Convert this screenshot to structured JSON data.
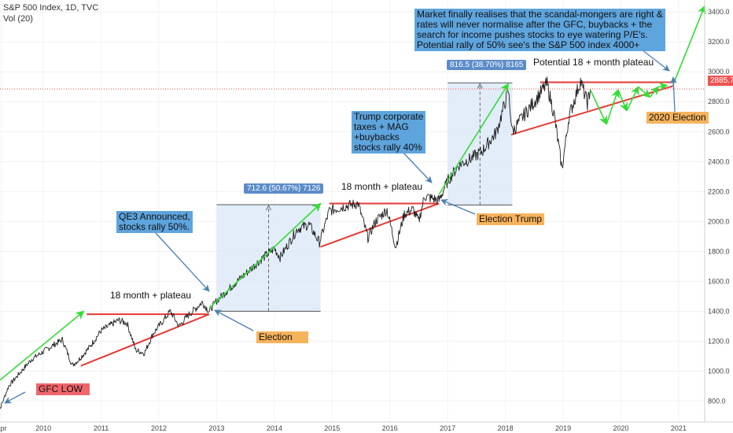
{
  "header": {
    "symbol_line": "S&P 500 Index, 1D, TVC",
    "volume_line": "Vol (20)"
  },
  "chart_data": {
    "type": "line",
    "title": "S&P 500 Index, 1D, TVC",
    "x_ticks": [
      "Apr",
      "2010",
      "2011",
      "2012",
      "2013",
      "2014",
      "2015",
      "2016",
      "2017",
      "2018",
      "2019",
      "2020",
      "2021"
    ],
    "y_ticks": [
      "800.0",
      "1000.0",
      "1200.0",
      "1400.0",
      "1600.0",
      "1800.0",
      "2000.0",
      "2200.0",
      "2400.0",
      "2600.0",
      "2800.0",
      "3000.0",
      "3200.0",
      "3400.0"
    ],
    "ylim": [
      660,
      3480
    ],
    "xlim": [
      2009.25,
      2021.45
    ],
    "current_price": "2885.7",
    "current_price_value": 2885.7,
    "price_series": [
      [
        2009.2,
        700
      ],
      [
        2009.4,
        900
      ],
      [
        2009.6,
        990
      ],
      [
        2009.8,
        1080
      ],
      [
        2010.0,
        1130
      ],
      [
        2010.2,
        1180
      ],
      [
        2010.33,
        1210
      ],
      [
        2010.5,
        1040
      ],
      [
        2010.6,
        1070
      ],
      [
        2010.8,
        1160
      ],
      [
        2011.0,
        1270
      ],
      [
        2011.3,
        1340
      ],
      [
        2011.45,
        1320
      ],
      [
        2011.6,
        1140
      ],
      [
        2011.75,
        1120
      ],
      [
        2011.9,
        1250
      ],
      [
        2012.2,
        1400
      ],
      [
        2012.35,
        1300
      ],
      [
        2012.5,
        1370
      ],
      [
        2012.75,
        1460
      ],
      [
        2012.87,
        1400
      ],
      [
        2013.0,
        1470
      ],
      [
        2013.3,
        1580
      ],
      [
        2013.5,
        1650
      ],
      [
        2013.75,
        1740
      ],
      [
        2014.0,
        1820
      ],
      [
        2014.1,
        1760
      ],
      [
        2014.4,
        1950
      ],
      [
        2014.6,
        1980
      ],
      [
        2014.78,
        1860
      ],
      [
        2014.95,
        2070
      ],
      [
        2015.2,
        2100
      ],
      [
        2015.45,
        2120
      ],
      [
        2015.62,
        1890
      ],
      [
        2015.75,
        2000
      ],
      [
        2015.95,
        2080
      ],
      [
        2016.1,
        1830
      ],
      [
        2016.25,
        2050
      ],
      [
        2016.4,
        2080
      ],
      [
        2016.5,
        2000
      ],
      [
        2016.6,
        2170
      ],
      [
        2016.85,
        2140
      ],
      [
        2017.0,
        2270
      ],
      [
        2017.2,
        2380
      ],
      [
        2017.4,
        2420
      ],
      [
        2017.6,
        2470
      ],
      [
        2017.85,
        2600
      ],
      [
        2018.05,
        2870
      ],
      [
        2018.12,
        2600
      ],
      [
        2018.3,
        2700
      ],
      [
        2018.5,
        2800
      ],
      [
        2018.72,
        2920
      ],
      [
        2018.85,
        2700
      ],
      [
        2018.98,
        2350
      ],
      [
        2019.1,
        2700
      ],
      [
        2019.3,
        2940
      ],
      [
        2019.42,
        2790
      ],
      [
        2019.47,
        2885
      ]
    ],
    "support_lines_red": [
      {
        "from": [
          2010.65,
          1035
        ],
        "to": [
          2012.87,
          1380
        ]
      },
      {
        "from": [
          2010.75,
          1380
        ],
        "to": [
          2012.87,
          1380
        ]
      },
      {
        "from": [
          2014.8,
          1830
        ],
        "to": [
          2016.85,
          2120
        ]
      },
      {
        "from": [
          2014.95,
          2120
        ],
        "to": [
          2016.85,
          2120
        ]
      },
      {
        "from": [
          2018.1,
          2580
        ],
        "to": [
          2020.9,
          2905
        ]
      },
      {
        "from": [
          2018.6,
          2930
        ],
        "to": [
          2020.9,
          2930
        ]
      }
    ],
    "trend_arrows_green": [
      {
        "from": [
          2009.25,
          940
        ],
        "to": [
          2010.7,
          1400
        ]
      },
      {
        "from": [
          2012.87,
          1420
        ],
        "to": [
          2014.8,
          2120
        ]
      },
      {
        "from": [
          2016.85,
          2180
        ],
        "to": [
          2018.05,
          2920
        ]
      },
      {
        "from": [
          2020.9,
          2910
        ],
        "to": [
          2021.45,
          3440
        ]
      }
    ],
    "projection_path_green": [
      [
        2019.47,
        2880
      ],
      [
        2019.75,
        2650
      ],
      [
        2019.95,
        2880
      ],
      [
        2020.1,
        2740
      ],
      [
        2020.3,
        2900
      ],
      [
        2020.5,
        2830
      ],
      [
        2020.65,
        2900
      ],
      [
        2020.8,
        2910
      ]
    ],
    "measured_moves": [
      {
        "label": "712.6 (50.67%) 7126",
        "x0": 2013.0,
        "x1": 2014.8,
        "y0": 1400,
        "y1": 2112
      },
      {
        "label": "816.5 (38.70%) 8165",
        "x0": 2017.0,
        "x1": 2018.12,
        "y0": 2110,
        "y1": 2926
      }
    ],
    "annotations": {
      "gfc_low": "GFC LOW",
      "plateau_1": "18 month + plateau",
      "qe3": "QE3 Announced,\nstocks rally 50%.",
      "election": "Election",
      "plateau_2": "18 month + plateau",
      "trump_taxes": "Trump corporate\ntaxes + MAG\n+buybacks\nstocks rally 40%",
      "election_trump": "Election Trump",
      "plateau_3": "Potential 18 + month plateau",
      "market_note": "Market finally realises that the scandal-mongers are right &\nrates will never normalise after the GFC, buybacks + the\nsearch for income pushes stocks to eye watering P/E's.\nPotential rally of 50% see's the S&P 500 index 4000+",
      "election_2020": "2020 Election"
    },
    "colors": {
      "price": "#1f1f1f",
      "support": "#e53935",
      "trend": "#33dd33",
      "measure_fill": "#dbe8f8",
      "measure_line": "#5b8cc9",
      "callout_arrow": "#4a7fb5",
      "box_blue": "#5ea4dd",
      "box_orange": "#f6b35c",
      "box_red": "#f0666b"
    }
  }
}
